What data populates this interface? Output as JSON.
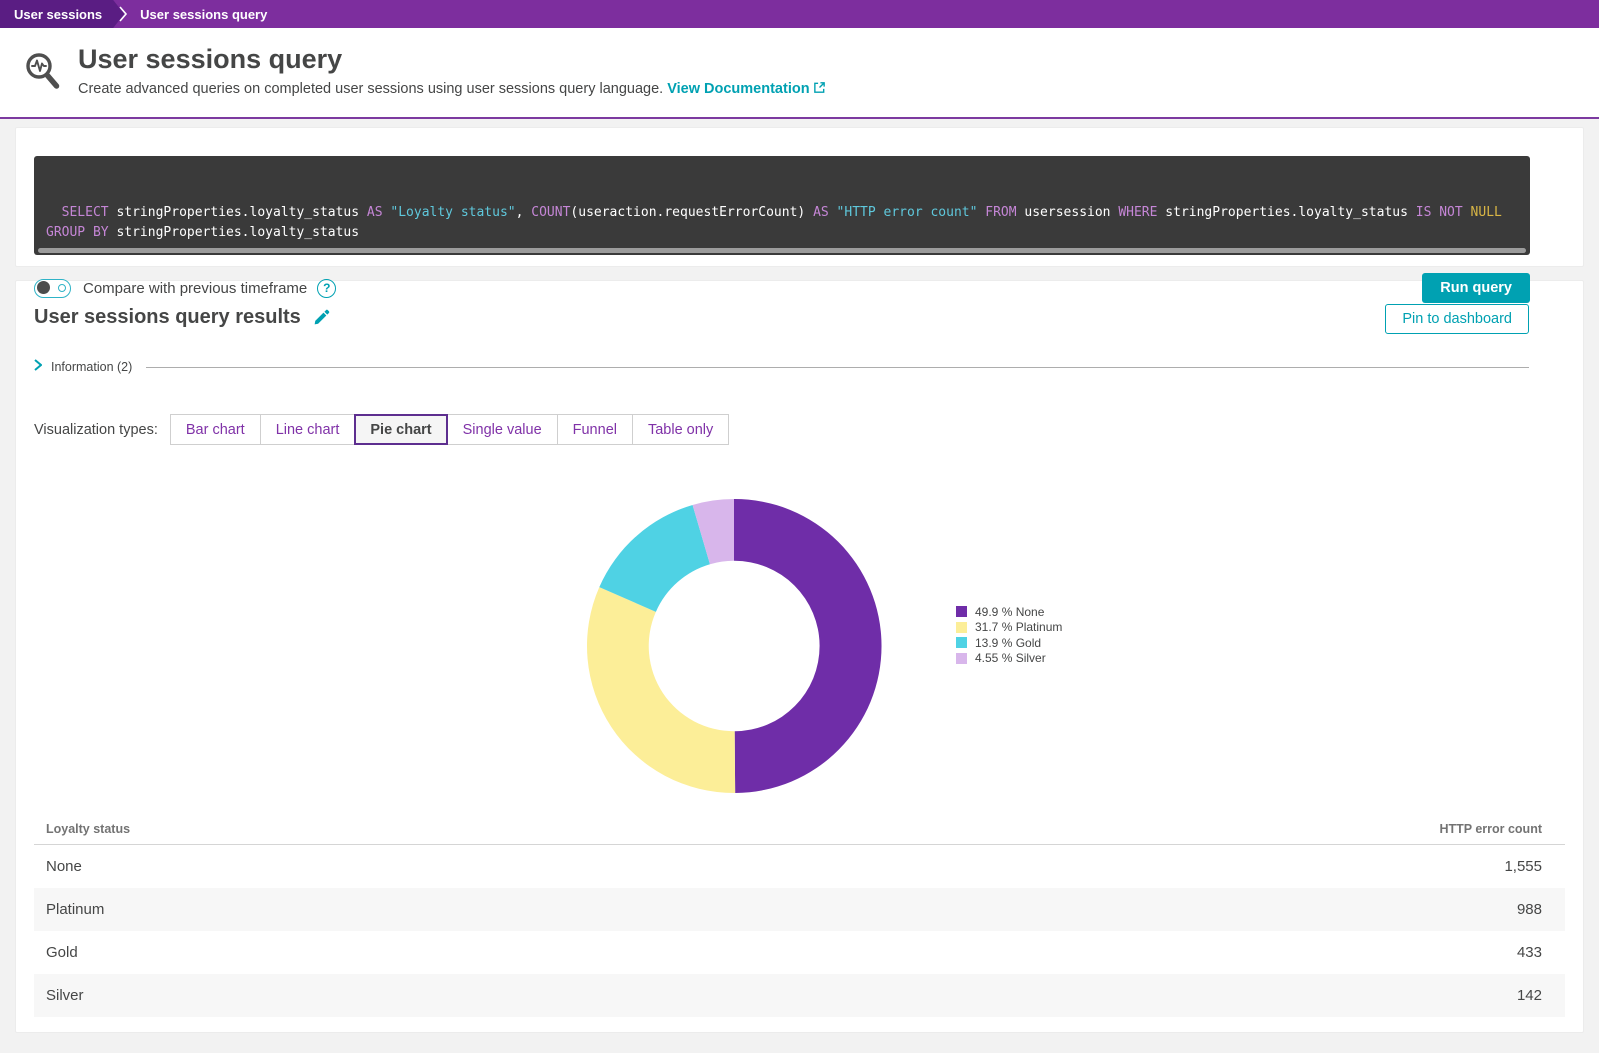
{
  "breadcrumb": {
    "items": [
      "User sessions",
      "User sessions query"
    ]
  },
  "header": {
    "title": "User sessions query",
    "subtitle": "Create advanced queries on completed user sessions using user sessions query language.",
    "doc_link_label": "View Documentation"
  },
  "query": {
    "tokens": [
      {
        "t": "SELECT ",
        "c": "kw"
      },
      {
        "t": "stringProperties.loyalty_status ",
        "c": "plain"
      },
      {
        "t": "AS ",
        "c": "kw"
      },
      {
        "t": "\"Loyalty status\"",
        "c": "str"
      },
      {
        "t": ", ",
        "c": "plain"
      },
      {
        "t": "COUNT",
        "c": "kw"
      },
      {
        "t": "(useraction.requestErrorCount) ",
        "c": "plain"
      },
      {
        "t": "AS ",
        "c": "kw"
      },
      {
        "t": "\"HTTP error count\" ",
        "c": "str"
      },
      {
        "t": "FROM ",
        "c": "kw"
      },
      {
        "t": "usersession ",
        "c": "plain"
      },
      {
        "t": "WHERE ",
        "c": "kw"
      },
      {
        "t": "stringProperties.loyalty_status ",
        "c": "plain"
      },
      {
        "t": "IS NOT ",
        "c": "kw"
      },
      {
        "t": "NULL",
        "c": "null"
      },
      {
        "t": "\n",
        "c": "plain"
      },
      {
        "t": "GROUP BY ",
        "c": "kw"
      },
      {
        "t": "stringProperties.loyalty_status",
        "c": "plain"
      }
    ]
  },
  "query_toolbar": {
    "compare_label": "Compare with previous timeframe",
    "help_glyph": "?",
    "run_label": "Run query"
  },
  "results": {
    "title": "User sessions query results",
    "pin_label": "Pin to dashboard",
    "information_label": "Information (2)"
  },
  "visualization": {
    "label": "Visualization types:",
    "options": [
      {
        "label": "Bar chart",
        "selected": false
      },
      {
        "label": "Line chart",
        "selected": false
      },
      {
        "label": "Pie chart",
        "selected": true
      },
      {
        "label": "Single value",
        "selected": false
      },
      {
        "label": "Funnel",
        "selected": false
      },
      {
        "label": "Table only",
        "selected": false
      }
    ]
  },
  "chart_data": {
    "type": "pie",
    "title": "",
    "labels": [
      "None",
      "Platinum",
      "Gold",
      "Silver"
    ],
    "values": [
      49.9,
      31.7,
      13.9,
      4.55
    ],
    "counts": [
      1555,
      988,
      433,
      142
    ],
    "percent_labels": [
      "49.9 %",
      "31.7 %",
      "13.9 %",
      "4.55 %"
    ],
    "colors": [
      "#6f2da8",
      "#fcee98",
      "#4fd2e4",
      "#d8b6eb"
    ],
    "donut": true,
    "inner_radius_ratio": 0.58,
    "start_angle_deg": 0,
    "direction": "clockwise",
    "legend_position": "right"
  },
  "table": {
    "headers": [
      "Loyalty status",
      "HTTP error count"
    ],
    "rows": [
      [
        "None",
        "1,555"
      ],
      [
        "Platinum",
        "988"
      ],
      [
        "Gold",
        "433"
      ],
      [
        "Silver",
        "142"
      ]
    ]
  },
  "colors": {
    "brand_purple": "#7d2e9e",
    "brand_purple_dark": "#5a1d83",
    "accent_teal": "#00a1b2",
    "code_keyword": "#c586d6",
    "code_string": "#5fc8dc",
    "code_null": "#d8b545",
    "code_background": "#3a3a3a"
  }
}
